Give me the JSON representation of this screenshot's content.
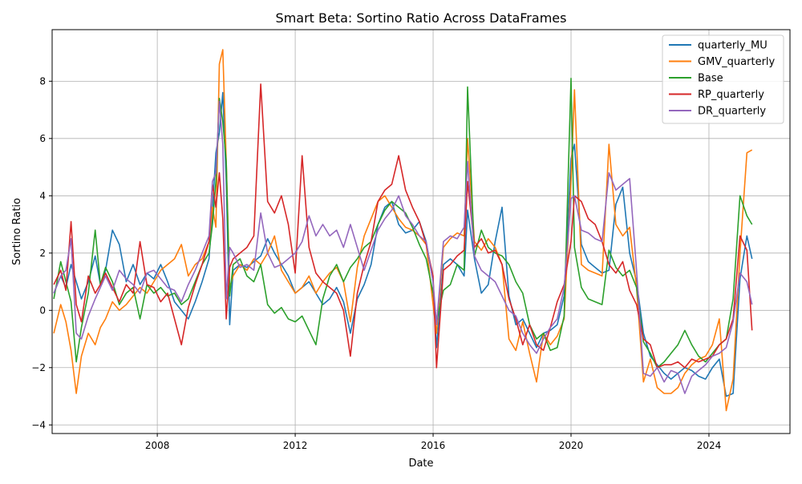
{
  "chart_data": {
    "type": "line",
    "title": "Smart Beta: Sortino Ratio Across DataFrames",
    "xlabel": "Date",
    "ylabel": "Sortino Ratio",
    "xlim": [
      2004.95,
      2026.35
    ],
    "ylim": [
      -4.3,
      9.8
    ],
    "x_ticks": [
      2008,
      2012,
      2016,
      2020,
      2024
    ],
    "x_tick_labels": [
      "2008",
      "2012",
      "2016",
      "2020",
      "2024"
    ],
    "y_ticks": [
      -4,
      -2,
      0,
      2,
      4,
      6,
      8
    ],
    "y_tick_labels": [
      "−4",
      "−2",
      "0",
      "2",
      "4",
      "6",
      "8"
    ],
    "grid": true,
    "legend_position": "top-right",
    "series": [
      {
        "name": "quarterly_MU",
        "color": "#1f77b4",
        "x": [
          2005.0,
          2005.2,
          2005.35,
          2005.5,
          2005.65,
          2005.8,
          2006.0,
          2006.2,
          2006.35,
          2006.5,
          2006.7,
          2006.9,
          2007.1,
          2007.3,
          2007.5,
          2007.7,
          2007.9,
          2008.1,
          2008.3,
          2008.5,
          2008.7,
          2008.9,
          2009.1,
          2009.3,
          2009.5,
          2009.6,
          2009.7,
          2009.8,
          2009.9,
          2010.0,
          2010.1,
          2010.2,
          2010.4,
          2010.6,
          2010.8,
          2011.0,
          2011.2,
          2011.4,
          2011.6,
          2011.8,
          2012.0,
          2012.2,
          2012.4,
          2012.6,
          2012.8,
          2013.0,
          2013.2,
          2013.4,
          2013.6,
          2013.8,
          2014.0,
          2014.2,
          2014.4,
          2014.6,
          2014.8,
          2015.0,
          2015.2,
          2015.4,
          2015.6,
          2015.8,
          2016.0,
          2016.1,
          2016.3,
          2016.5,
          2016.7,
          2016.9,
          2017.0,
          2017.2,
          2017.4,
          2017.6,
          2017.8,
          2018.0,
          2018.2,
          2018.4,
          2018.6,
          2018.8,
          2019.0,
          2019.2,
          2019.4,
          2019.6,
          2019.8,
          2020.0,
          2020.1,
          2020.3,
          2020.5,
          2020.7,
          2020.9,
          2021.1,
          2021.3,
          2021.5,
          2021.7,
          2021.9,
          2022.1,
          2022.3,
          2022.5,
          2022.7,
          2022.9,
          2023.1,
          2023.3,
          2023.5,
          2023.7,
          2023.9,
          2024.1,
          2024.3,
          2024.5,
          2024.7,
          2024.9,
          2025.1,
          2025.25
        ],
        "y": [
          0.6,
          1.2,
          0.8,
          1.6,
          1.0,
          0.4,
          1.0,
          1.9,
          0.9,
          1.4,
          2.8,
          2.3,
          1.0,
          1.6,
          0.9,
          1.3,
          1.1,
          1.6,
          1.0,
          0.3,
          0.0,
          -0.3,
          0.3,
          1.0,
          1.8,
          3.5,
          5.5,
          6.2,
          7.6,
          4.5,
          -0.5,
          1.4,
          1.6,
          1.5,
          1.7,
          1.9,
          2.5,
          2.0,
          1.6,
          1.2,
          0.6,
          0.8,
          1.0,
          0.6,
          0.2,
          0.4,
          0.8,
          0.3,
          -0.8,
          0.4,
          0.9,
          1.6,
          3.0,
          3.6,
          3.8,
          3.0,
          2.7,
          2.8,
          3.1,
          2.4,
          1.0,
          -1.3,
          1.6,
          1.8,
          1.6,
          1.2,
          3.5,
          1.8,
          0.6,
          0.9,
          2.4,
          3.6,
          0.5,
          -0.5,
          -0.3,
          -0.8,
          -1.3,
          -0.8,
          -0.7,
          -0.5,
          0.5,
          5.3,
          5.8,
          2.3,
          1.7,
          1.5,
          1.3,
          1.4,
          3.7,
          4.3,
          2.0,
          1.0,
          -0.8,
          -1.6,
          -1.9,
          -2.2,
          -2.4,
          -2.2,
          -2.0,
          -2.1,
          -2.3,
          -2.4,
          -2.0,
          -1.7,
          -3.0,
          -2.9,
          1.1,
          2.6,
          1.8
        ]
      },
      {
        "name": "GMV_quarterly",
        "color": "#ff7f0e",
        "x": [
          2005.0,
          2005.2,
          2005.35,
          2005.5,
          2005.65,
          2005.8,
          2006.0,
          2006.2,
          2006.35,
          2006.5,
          2006.7,
          2006.9,
          2007.1,
          2007.3,
          2007.5,
          2007.7,
          2007.9,
          2008.1,
          2008.3,
          2008.5,
          2008.7,
          2008.9,
          2009.1,
          2009.3,
          2009.5,
          2009.6,
          2009.7,
          2009.8,
          2009.9,
          2010.0,
          2010.1,
          2010.2,
          2010.4,
          2010.6,
          2010.8,
          2011.0,
          2011.2,
          2011.4,
          2011.6,
          2011.8,
          2012.0,
          2012.2,
          2012.4,
          2012.6,
          2012.8,
          2013.0,
          2013.2,
          2013.4,
          2013.6,
          2013.8,
          2014.0,
          2014.2,
          2014.4,
          2014.6,
          2014.8,
          2015.0,
          2015.2,
          2015.4,
          2015.6,
          2015.8,
          2016.0,
          2016.1,
          2016.3,
          2016.5,
          2016.7,
          2016.9,
          2017.0,
          2017.2,
          2017.4,
          2017.6,
          2017.8,
          2018.0,
          2018.2,
          2018.4,
          2018.6,
          2018.8,
          2019.0,
          2019.2,
          2019.4,
          2019.6,
          2019.8,
          2020.0,
          2020.1,
          2020.3,
          2020.5,
          2020.7,
          2020.9,
          2021.1,
          2021.3,
          2021.5,
          2021.7,
          2021.9,
          2022.1,
          2022.3,
          2022.5,
          2022.7,
          2022.9,
          2023.1,
          2023.3,
          2023.5,
          2023.7,
          2023.9,
          2024.1,
          2024.3,
          2024.5,
          2024.7,
          2024.9,
          2025.1,
          2025.25
        ],
        "y": [
          -0.8,
          0.2,
          -0.4,
          -1.4,
          -2.9,
          -1.6,
          -0.8,
          -1.2,
          -0.6,
          -0.3,
          0.3,
          0.0,
          0.2,
          0.5,
          0.8,
          0.6,
          1.0,
          1.4,
          1.6,
          1.8,
          2.3,
          1.2,
          1.6,
          1.8,
          2.4,
          3.6,
          2.9,
          8.6,
          9.1,
          5.2,
          0.8,
          1.2,
          1.6,
          1.4,
          1.8,
          1.6,
          2.0,
          2.6,
          1.4,
          1.0,
          0.6,
          0.8,
          1.2,
          0.6,
          1.0,
          1.3,
          1.5,
          1.0,
          -0.4,
          1.5,
          2.6,
          3.2,
          3.8,
          4.0,
          3.6,
          3.2,
          2.9,
          2.8,
          2.6,
          2.3,
          0.2,
          -0.8,
          2.2,
          2.5,
          2.7,
          2.6,
          6.0,
          2.4,
          2.1,
          2.5,
          2.2,
          1.6,
          -1.0,
          -1.4,
          -0.4,
          -1.5,
          -2.5,
          -0.8,
          -1.2,
          -0.9,
          -0.3,
          4.5,
          7.7,
          1.6,
          1.4,
          1.3,
          1.2,
          5.8,
          3.0,
          2.6,
          2.9,
          0.8,
          -2.5,
          -1.7,
          -2.7,
          -2.9,
          -2.9,
          -2.7,
          -2.2,
          -1.9,
          -1.7,
          -1.6,
          -1.2,
          -0.3,
          -3.5,
          -2.4,
          2.0,
          5.5,
          5.6
        ]
      },
      {
        "name": "Base",
        "color": "#2ca02c",
        "x": [
          2005.0,
          2005.2,
          2005.35,
          2005.5,
          2005.65,
          2005.8,
          2006.0,
          2006.2,
          2006.35,
          2006.5,
          2006.7,
          2006.9,
          2007.1,
          2007.3,
          2007.5,
          2007.7,
          2007.9,
          2008.1,
          2008.3,
          2008.5,
          2008.7,
          2008.9,
          2009.1,
          2009.3,
          2009.5,
          2009.6,
          2009.7,
          2009.8,
          2009.9,
          2010.0,
          2010.1,
          2010.2,
          2010.4,
          2010.6,
          2010.8,
          2011.0,
          2011.2,
          2011.4,
          2011.6,
          2011.8,
          2012.0,
          2012.2,
          2012.4,
          2012.6,
          2012.8,
          2013.0,
          2013.2,
          2013.4,
          2013.6,
          2013.8,
          2014.0,
          2014.2,
          2014.4,
          2014.6,
          2014.8,
          2015.0,
          2015.2,
          2015.4,
          2015.6,
          2015.8,
          2016.0,
          2016.1,
          2016.3,
          2016.5,
          2016.7,
          2016.9,
          2017.0,
          2017.2,
          2017.4,
          2017.6,
          2017.8,
          2018.0,
          2018.2,
          2018.4,
          2018.6,
          2018.8,
          2019.0,
          2019.2,
          2019.4,
          2019.6,
          2019.8,
          2020.0,
          2020.1,
          2020.3,
          2020.5,
          2020.7,
          2020.9,
          2021.1,
          2021.3,
          2021.5,
          2021.7,
          2021.9,
          2022.1,
          2022.3,
          2022.5,
          2022.7,
          2022.9,
          2023.1,
          2023.3,
          2023.5,
          2023.7,
          2023.9,
          2024.1,
          2024.3,
          2024.5,
          2024.7,
          2024.9,
          2025.1,
          2025.25
        ],
        "y": [
          0.4,
          1.7,
          1.0,
          0.3,
          -1.8,
          -0.6,
          0.6,
          2.8,
          0.9,
          1.5,
          1.0,
          0.2,
          0.6,
          0.8,
          -0.3,
          0.9,
          0.6,
          0.8,
          0.5,
          0.6,
          0.2,
          0.4,
          1.0,
          1.6,
          2.0,
          3.0,
          4.5,
          7.4,
          6.6,
          5.2,
          0.5,
          1.6,
          1.8,
          1.2,
          1.0,
          1.6,
          0.2,
          -0.1,
          0.1,
          -0.3,
          -0.4,
          -0.2,
          -0.7,
          -1.2,
          0.4,
          1.2,
          1.6,
          1.0,
          1.5,
          1.8,
          2.2,
          2.4,
          3.0,
          3.5,
          3.8,
          3.6,
          3.4,
          2.9,
          2.3,
          1.8,
          0.6,
          -0.4,
          0.7,
          0.9,
          1.6,
          1.4,
          7.8,
          1.9,
          2.8,
          2.2,
          2.0,
          1.9,
          1.6,
          1.0,
          0.6,
          -0.5,
          -1.0,
          -0.8,
          -1.4,
          -1.3,
          -0.2,
          8.1,
          2.2,
          0.8,
          0.4,
          0.3,
          0.2,
          2.1,
          1.5,
          1.2,
          1.4,
          0.8,
          -1.1,
          -1.5,
          -2.0,
          -1.8,
          -1.5,
          -1.2,
          -0.7,
          -1.2,
          -1.6,
          -1.8,
          -1.5,
          -1.2,
          -1.0,
          0.4,
          4.0,
          3.3,
          3.0
        ]
      },
      {
        "name": "RP_quarterly",
        "color": "#d62728",
        "x": [
          2005.0,
          2005.2,
          2005.35,
          2005.5,
          2005.65,
          2005.8,
          2006.0,
          2006.2,
          2006.35,
          2006.5,
          2006.7,
          2006.9,
          2007.1,
          2007.3,
          2007.5,
          2007.7,
          2007.9,
          2008.1,
          2008.3,
          2008.5,
          2008.7,
          2008.9,
          2009.1,
          2009.3,
          2009.5,
          2009.6,
          2009.7,
          2009.8,
          2009.9,
          2010.0,
          2010.1,
          2010.2,
          2010.4,
          2010.6,
          2010.8,
          2011.0,
          2011.2,
          2011.4,
          2011.6,
          2011.8,
          2012.0,
          2012.2,
          2012.4,
          2012.6,
          2012.8,
          2013.0,
          2013.2,
          2013.4,
          2013.6,
          2013.8,
          2014.0,
          2014.2,
          2014.4,
          2014.6,
          2014.8,
          2015.0,
          2015.2,
          2015.4,
          2015.6,
          2015.8,
          2016.0,
          2016.1,
          2016.3,
          2016.5,
          2016.7,
          2016.9,
          2017.0,
          2017.2,
          2017.4,
          2017.6,
          2017.8,
          2018.0,
          2018.2,
          2018.4,
          2018.6,
          2018.8,
          2019.0,
          2019.2,
          2019.4,
          2019.6,
          2019.8,
          2020.0,
          2020.1,
          2020.3,
          2020.5,
          2020.7,
          2020.9,
          2021.1,
          2021.3,
          2021.5,
          2021.7,
          2021.9,
          2022.1,
          2022.3,
          2022.5,
          2022.7,
          2022.9,
          2023.1,
          2023.3,
          2023.5,
          2023.7,
          2023.9,
          2024.1,
          2024.3,
          2024.5,
          2024.7,
          2024.9,
          2025.1,
          2025.25
        ],
        "y": [
          0.9,
          1.4,
          0.7,
          3.1,
          0.2,
          -0.4,
          1.2,
          0.6,
          0.9,
          1.3,
          0.8,
          0.3,
          0.9,
          0.6,
          2.4,
          0.9,
          0.8,
          0.3,
          0.6,
          -0.3,
          -1.2,
          0.1,
          0.9,
          1.6,
          2.4,
          4.4,
          3.6,
          4.8,
          3.2,
          -0.3,
          1.5,
          1.8,
          2.0,
          2.2,
          2.6,
          7.9,
          3.8,
          3.4,
          4.0,
          3.0,
          1.3,
          5.4,
          2.2,
          1.3,
          1.0,
          0.8,
          0.6,
          0.0,
          -1.6,
          0.6,
          1.6,
          2.4,
          3.8,
          4.2,
          4.4,
          5.4,
          4.2,
          3.6,
          3.1,
          2.3,
          1.2,
          -2.0,
          1.4,
          1.6,
          1.9,
          2.1,
          4.5,
          2.2,
          2.5,
          2.0,
          2.1,
          1.6,
          0.4,
          -0.3,
          -1.2,
          -0.5,
          -1.2,
          -1.4,
          -0.6,
          0.3,
          0.9,
          2.4,
          4.0,
          3.8,
          3.2,
          3.0,
          2.4,
          1.6,
          1.3,
          1.7,
          0.7,
          0.2,
          -1.0,
          -1.2,
          -2.0,
          -1.9,
          -1.9,
          -1.8,
          -2.0,
          -1.7,
          -1.8,
          -1.7,
          -1.6,
          -1.2,
          -1.0,
          -0.3,
          2.6,
          2.1,
          -0.7
        ]
      },
      {
        "name": "DR_quarterly",
        "color": "#9467bd",
        "x": [
          2005.0,
          2005.2,
          2005.35,
          2005.5,
          2005.65,
          2005.8,
          2006.0,
          2006.2,
          2006.35,
          2006.5,
          2006.7,
          2006.9,
          2007.1,
          2007.3,
          2007.5,
          2007.7,
          2007.9,
          2008.1,
          2008.3,
          2008.5,
          2008.7,
          2008.9,
          2009.1,
          2009.3,
          2009.5,
          2009.6,
          2009.7,
          2009.8,
          2009.9,
          2010.0,
          2010.1,
          2010.2,
          2010.4,
          2010.6,
          2010.8,
          2011.0,
          2011.2,
          2011.4,
          2011.6,
          2011.8,
          2012.0,
          2012.2,
          2012.4,
          2012.6,
          2012.8,
          2013.0,
          2013.2,
          2013.4,
          2013.6,
          2013.8,
          2014.0,
          2014.2,
          2014.4,
          2014.6,
          2014.8,
          2015.0,
          2015.2,
          2015.4,
          2015.6,
          2015.8,
          2016.0,
          2016.1,
          2016.3,
          2016.5,
          2016.7,
          2016.9,
          2017.0,
          2017.2,
          2017.4,
          2017.6,
          2017.8,
          2018.0,
          2018.2,
          2018.4,
          2018.6,
          2018.8,
          2019.0,
          2019.2,
          2019.4,
          2019.6,
          2019.8,
          2020.0,
          2020.1,
          2020.3,
          2020.5,
          2020.7,
          2020.9,
          2021.1,
          2021.3,
          2021.5,
          2021.7,
          2021.9,
          2022.1,
          2022.3,
          2022.5,
          2022.7,
          2022.9,
          2023.1,
          2023.3,
          2023.5,
          2023.7,
          2023.9,
          2024.1,
          2024.3,
          2024.5,
          2024.7,
          2024.9,
          2025.1,
          2025.25
        ],
        "y": [
          0.6,
          1.2,
          1.4,
          2.5,
          -0.8,
          -1.0,
          -0.2,
          0.4,
          0.8,
          1.2,
          0.7,
          1.4,
          1.1,
          0.9,
          0.6,
          1.3,
          1.4,
          1.1,
          0.8,
          0.7,
          0.3,
          0.9,
          1.4,
          2.0,
          2.6,
          4.5,
          4.8,
          7.3,
          5.8,
          0.4,
          2.2,
          2.0,
          1.5,
          1.6,
          1.4,
          3.4,
          2.0,
          1.5,
          1.6,
          1.8,
          2.0,
          2.4,
          3.3,
          2.6,
          3.0,
          2.6,
          2.8,
          2.2,
          3.0,
          2.2,
          1.4,
          2.1,
          2.8,
          3.2,
          3.5,
          4.0,
          3.3,
          3.0,
          2.6,
          2.4,
          1.0,
          -0.5,
          2.4,
          2.6,
          2.5,
          2.9,
          5.2,
          1.9,
          1.4,
          1.2,
          1.0,
          0.5,
          0.0,
          -0.2,
          -0.8,
          -1.2,
          -1.5,
          -1.0,
          -0.6,
          -0.3,
          0.8,
          3.9,
          4.0,
          2.8,
          2.7,
          2.5,
          2.4,
          4.8,
          4.2,
          4.4,
          4.6,
          1.4,
          -2.2,
          -2.3,
          -2.0,
          -2.5,
          -2.1,
          -2.2,
          -2.9,
          -2.3,
          -2.1,
          -1.9,
          -1.6,
          -1.5,
          -1.3,
          -0.4,
          1.3,
          1.0,
          0.2
        ]
      }
    ]
  }
}
